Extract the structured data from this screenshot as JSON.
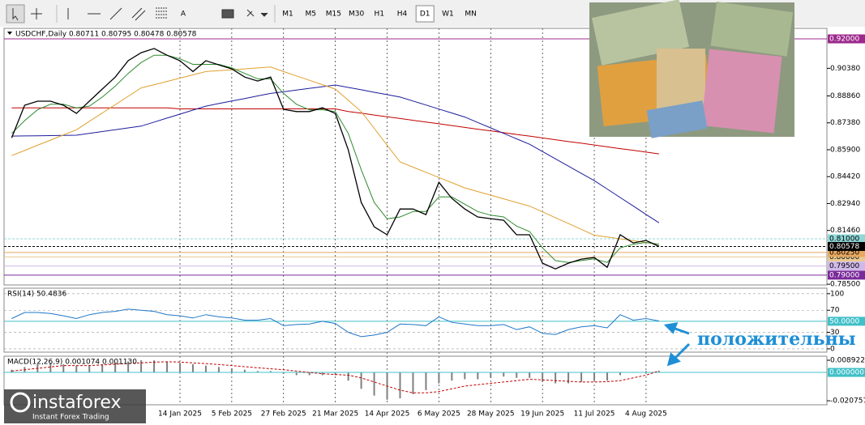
{
  "toolbar": {
    "tool_text": "A",
    "timeframes": [
      "M1",
      "M5",
      "M15",
      "M30",
      "H1",
      "H4",
      "D1",
      "W1",
      "MN"
    ],
    "active_timeframe_index": 6
  },
  "watermark": {
    "brand": "instaforex",
    "tagline": "Instant Forex Trading"
  },
  "chart_data": [
    {
      "type": "line",
      "title": "USDCHF,Daily  0.80711 0.80795 0.80478 0.80578",
      "categories": [
        null,
        null,
        null,
        null,
        null,
        null,
        null,
        null,
        null,
        null,
        null,
        null,
        null,
        "14 Jan 2025",
        null,
        null,
        null,
        "5 Feb 2025",
        null,
        null,
        null,
        "27 Feb 2025",
        null,
        null,
        null,
        "21 Mar 2025",
        null,
        null,
        null,
        "14 Apr 2025",
        null,
        null,
        null,
        "6 May 2025",
        null,
        null,
        null,
        "28 May 2025",
        null,
        null,
        null,
        "19 Jun 2025",
        null,
        null,
        null,
        "11 Jul 2025",
        null,
        null,
        null,
        "4 Aug 2025",
        null
      ],
      "series": [
        {
          "color": "#c00000",
          "width": 1,
          "values": [
            0.882,
            0.882,
            0.882,
            0.882,
            0.882,
            0.882,
            0.882,
            0.882,
            0.882,
            0.882,
            0.882,
            0.882,
            0.882,
            0.8815,
            0.8815,
            0.8815,
            0.8815,
            0.8815,
            0.8815,
            0.8815,
            0.8815,
            0.8815,
            0.8815,
            0.8815,
            0.8815,
            0.8815,
            0.88,
            0.8791,
            0.8781,
            0.8771,
            0.8762,
            0.8752,
            0.8742,
            0.8733,
            0.8723,
            0.8713,
            0.8703,
            0.8694,
            0.8684,
            0.8674,
            0.8665,
            0.8655,
            0.8645,
            0.8635,
            0.8626,
            0.8616,
            0.8606,
            0.8596,
            0.8587,
            0.8577,
            0.8567
          ]
        },
        {
          "color": "#1c1c9c",
          "width": 1,
          "values": [
            0.8665,
            0.8666,
            0.8667,
            0.8668,
            0.8669,
            0.867,
            0.868,
            0.869,
            0.87,
            0.871,
            0.872,
            0.8742,
            0.8764,
            0.8786,
            0.8808,
            0.883,
            0.8844,
            0.8858,
            0.8872,
            0.8886,
            0.89,
            0.8909,
            0.8918,
            0.8928,
            0.8937,
            0.8946,
            0.8933,
            0.892,
            0.8906,
            0.8893,
            0.888,
            0.8858,
            0.8836,
            0.8814,
            0.8792,
            0.877,
            0.874,
            0.871,
            0.868,
            0.865,
            0.862,
            0.858,
            0.854,
            0.85,
            0.846,
            0.842,
            0.8374,
            0.8327,
            0.8281,
            0.8234,
            0.8188
          ]
        },
        {
          "color": "#e0a030",
          "width": 1,
          "values": [
            0.8558,
            0.8586,
            0.8615,
            0.8643,
            0.8672,
            0.87,
            0.8746,
            0.8792,
            0.8838,
            0.8884,
            0.893,
            0.8948,
            0.8966,
            0.8984,
            0.9002,
            0.902,
            0.9025,
            0.903,
            0.9035,
            0.904,
            0.9045,
            0.902,
            0.8996,
            0.8972,
            0.8948,
            0.8924,
            0.8862,
            0.88,
            0.8708,
            0.8615,
            0.8523,
            0.8494,
            0.8466,
            0.8437,
            0.8409,
            0.838,
            0.836,
            0.834,
            0.832,
            0.83,
            0.828,
            0.8248,
            0.8216,
            0.8184,
            0.8152,
            0.812,
            0.811,
            0.81,
            0.809,
            0.808,
            0.807
          ]
        },
        {
          "color": "#2e8b2e",
          "width": 1,
          "values": [
            0.868,
            0.875,
            0.881,
            0.884,
            0.884,
            0.882,
            0.883,
            0.888,
            0.894,
            0.901,
            0.907,
            0.911,
            0.911,
            0.909,
            0.906,
            0.906,
            0.906,
            0.904,
            0.901,
            0.898,
            0.898,
            0.89,
            0.884,
            0.881,
            0.881,
            0.88,
            0.868,
            0.848,
            0.83,
            0.821,
            0.822,
            0.825,
            0.825,
            0.833,
            0.833,
            0.829,
            0.825,
            0.823,
            0.822,
            0.817,
            0.814,
            0.805,
            0.798,
            0.797,
            0.798,
            0.799,
            0.797,
            0.805,
            0.807,
            0.808,
            0.807
          ]
        },
        {
          "color": "#000000",
          "width": 1.3,
          "values": [
            0.8656,
            0.8835,
            0.8857,
            0.8857,
            0.8835,
            0.879,
            0.8857,
            0.8924,
            0.899,
            0.908,
            0.9124,
            0.9147,
            0.911,
            0.908,
            0.902,
            0.908,
            0.9057,
            0.9035,
            0.899,
            0.8968,
            0.899,
            0.8812,
            0.88,
            0.88,
            0.8821,
            0.879,
            0.859,
            0.83,
            0.8166,
            0.8122,
            0.8264,
            0.8264,
            0.8233,
            0.8411,
            0.8322,
            0.8264,
            0.822,
            0.8211,
            0.8202,
            0.8122,
            0.8122,
            0.7966,
            0.7934,
            0.7966,
            0.7988,
            0.7997,
            0.7943,
            0.8122,
            0.8077,
            0.8091,
            0.8058
          ]
        }
      ],
      "ylim": [
        0.7846,
        0.9258
      ],
      "yticks": [
        {
          "value": 0.9038,
          "label": "0.90380"
        },
        {
          "value": 0.8886,
          "label": "0.88860"
        },
        {
          "value": 0.8738,
          "label": "0.87380"
        },
        {
          "value": 0.859,
          "label": "0.85900"
        },
        {
          "value": 0.8442,
          "label": "0.84420"
        },
        {
          "value": 0.8294,
          "label": "0.82940"
        },
        {
          "value": 0.8146,
          "label": "0.81460"
        },
        {
          "value": 0.785,
          "label": "0.78500"
        }
      ],
      "levels": [
        {
          "value": 0.92,
          "label": "0.92000",
          "color": "#9c2a8c",
          "text_color": "#ffffff",
          "dashed": false
        },
        {
          "value": 0.81,
          "label": "0.81000",
          "color": "#8fd8d8",
          "text_color": "#000000",
          "dashed": true
        },
        {
          "value": 0.8,
          "label": "0.80000",
          "color": "#e8c890",
          "text_color": "#000000",
          "dashed": false
        },
        {
          "value": 0.795,
          "label": "0.79500",
          "color": "#d0b8e8",
          "text_color": "#000000",
          "dashed": false
        },
        {
          "value": 0.8025,
          "label": "0.80250",
          "color": "#e8a860",
          "text_color": "#000000",
          "dashed": false
        },
        {
          "value": 0.79,
          "label": "0.79000",
          "color": "#7a2a9a",
          "text_color": "#ffffff",
          "dashed": false
        },
        {
          "value": 0.80578,
          "label": "0.80578",
          "color": "#000000",
          "text_color": "#ffffff",
          "dashed": true
        }
      ]
    },
    {
      "type": "line",
      "title": "RSI(14) 50.4836",
      "annotation": "положительны",
      "grid": true,
      "series": [
        {
          "color": "#1e78c8",
          "width": 1,
          "values": [
            55,
            66,
            66,
            64,
            60,
            55,
            62,
            66,
            68,
            72,
            70,
            68,
            62,
            60,
            56,
            62,
            58,
            56,
            52,
            52,
            55,
            42,
            44,
            45,
            50,
            46,
            30,
            22,
            25,
            30,
            45,
            44,
            42,
            58,
            48,
            45,
            42,
            42,
            44,
            35,
            40,
            28,
            26,
            35,
            40,
            42,
            38,
            62,
            52,
            55,
            50.4836
          ]
        }
      ],
      "ylim": [
        -6,
        110
      ],
      "yticks": [
        100,
        70,
        30,
        0
      ],
      "levels": [
        {
          "value": 50,
          "label": "50.0000",
          "color": "#40c0c8",
          "text_color": "#ffffff",
          "dashed": false
        }
      ]
    },
    {
      "type": "bar",
      "title": "MACD(12,26,9) 0.001074 0.001130",
      "color": "#808080",
      "values": [
        0.002,
        0.004,
        0.006,
        0.007,
        0.006,
        0.005,
        0.005,
        0.006,
        0.007,
        0.008,
        0.0089,
        0.0088,
        0.008,
        0.007,
        0.006,
        0.005,
        0.004,
        0.003,
        0.002,
        0.001,
        0.001,
        -0.001,
        -0.002,
        -0.002,
        -0.002,
        -0.002,
        -0.006,
        -0.012,
        -0.017,
        -0.02,
        -0.019,
        -0.016,
        -0.013,
        -0.008,
        -0.006,
        -0.005,
        -0.005,
        -0.004,
        -0.003,
        -0.004,
        -0.004,
        -0.007,
        -0.008,
        -0.008,
        -0.007,
        -0.006,
        -0.006,
        -0.002,
        0,
        0.001,
        0.001074
      ],
      "series": [
        {
          "color": "#c00000",
          "width": 1,
          "dashed": true,
          "values": [
            0.001,
            0.002,
            0.003,
            0.004,
            0.005,
            0.005,
            0.005,
            0.0055,
            0.006,
            0.0065,
            0.007,
            0.0075,
            0.0078,
            0.0076,
            0.007,
            0.0065,
            0.0058,
            0.005,
            0.0042,
            0.0034,
            0.0027,
            0.002,
            0.001,
            0,
            -0.001,
            -0.0015,
            -0.002,
            -0.004,
            -0.007,
            -0.01,
            -0.013,
            -0.015,
            -0.015,
            -0.014,
            -0.012,
            -0.01,
            -0.009,
            -0.008,
            -0.007,
            -0.006,
            -0.005,
            -0.0055,
            -0.006,
            -0.0065,
            -0.007,
            -0.007,
            -0.0068,
            -0.006,
            -0.004,
            -0.002,
            0.00113
          ]
        }
      ],
      "ylim": [
        -0.0237,
        0.0119
      ],
      "yticks": [
        0.008922,
        -0.020757
      ],
      "levels": [
        {
          "value": 0,
          "label": "0.000000",
          "color": "#40c0c8",
          "text_color": "#ffffff",
          "dashed": false
        }
      ]
    }
  ]
}
